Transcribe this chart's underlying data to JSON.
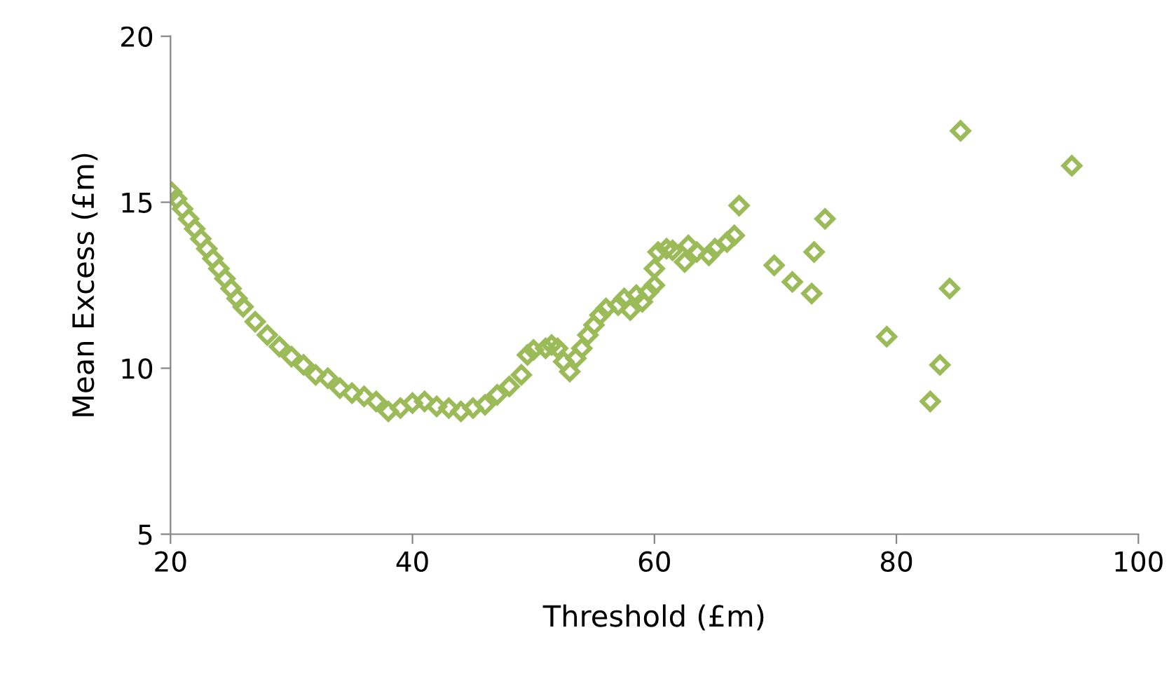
{
  "chart_data": {
    "type": "scatter",
    "xlabel": "Threshold (£m)",
    "ylabel": "Mean Excess (£m)",
    "xlim": [
      20,
      100
    ],
    "xticks": [
      20,
      40,
      60,
      80,
      100
    ],
    "ylim": [
      5,
      20
    ],
    "yticks": [
      5,
      10,
      15,
      20
    ],
    "grid": false,
    "legend": false,
    "marker": "diamond",
    "series": [
      {
        "color": "#9bbb59",
        "x": [
          20.1,
          20.5,
          21,
          21.5,
          22,
          22.5,
          23,
          23.5,
          24,
          24.5,
          25,
          25.5,
          26,
          27,
          28,
          29,
          30,
          31,
          32,
          33,
          34,
          35,
          36,
          37,
          38,
          39,
          40,
          41,
          42,
          43,
          44,
          45,
          46,
          47,
          48,
          49,
          49.5,
          50,
          51,
          51.5,
          52,
          52.5,
          53,
          53.5,
          54,
          54.5,
          55,
          55.5,
          56,
          57,
          57.5,
          58,
          58.5,
          59,
          59.5,
          60,
          60,
          60.3,
          61,
          61.5,
          62.5,
          62.8,
          63.5,
          64.5,
          65,
          66,
          66.6,
          67,
          69.9,
          71.4,
          73,
          73.2,
          74.1,
          79.2,
          82.8,
          83.6,
          84.4,
          85.3,
          94.5
        ],
        "values": [
          15.3,
          15.1,
          14.8,
          14.5,
          14.2,
          13.9,
          13.6,
          13.3,
          13,
          12.7,
          12.4,
          12.1,
          11.85,
          11.4,
          11,
          10.65,
          10.35,
          10.1,
          9.8,
          9.7,
          9.4,
          9.25,
          9.15,
          9,
          8.7,
          8.8,
          8.95,
          9,
          8.85,
          8.8,
          8.7,
          8.8,
          8.9,
          9.2,
          9.45,
          9.8,
          10.4,
          10.55,
          10.6,
          10.7,
          10.6,
          10.2,
          9.9,
          10.3,
          10.6,
          11,
          11.3,
          11.6,
          11.8,
          11.9,
          12.1,
          11.75,
          12.2,
          12,
          12.3,
          12.5,
          13,
          13.5,
          13.6,
          13.55,
          13.2,
          13.7,
          13.5,
          13.4,
          13.6,
          13.8,
          14,
          14.9,
          13.1,
          12.6,
          12.25,
          13.5,
          14.5,
          10.95,
          9,
          10.1,
          12.4,
          17.15,
          16.1
        ]
      }
    ]
  }
}
